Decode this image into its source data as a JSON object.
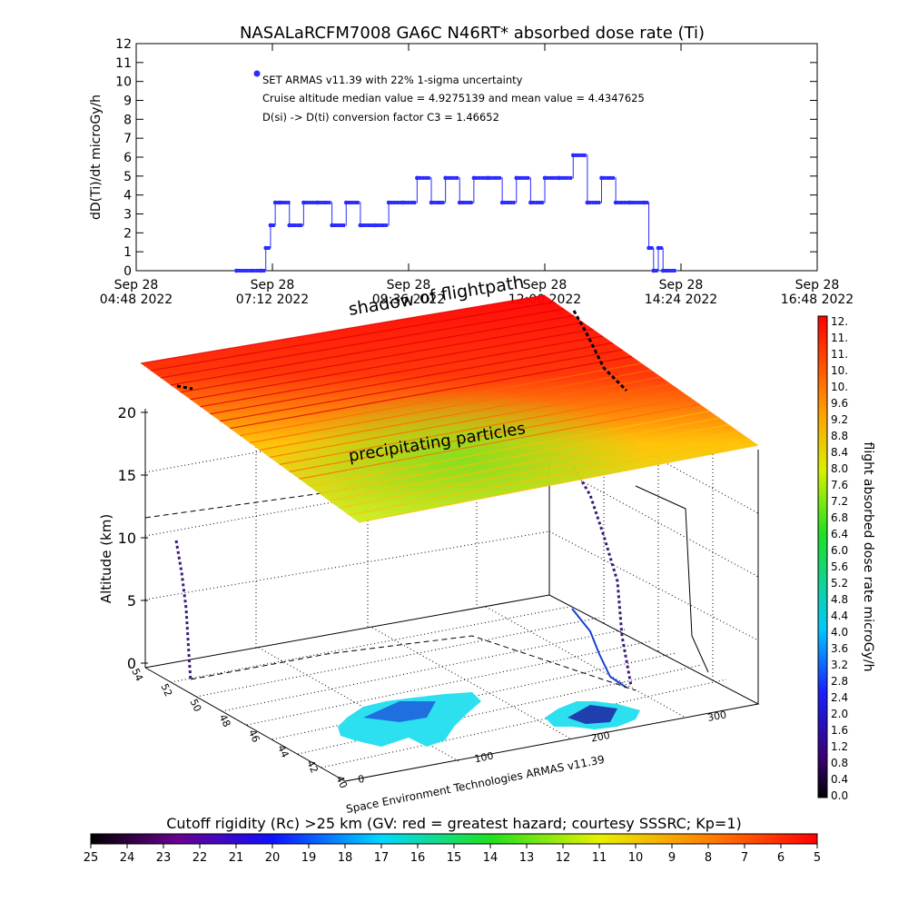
{
  "title": "NASALaRCFM7008  GA6C N46RT* absorbed dose rate (Ti)",
  "top_chart": {
    "ylabel": "dD(Ti)/dt microGy/h",
    "legend_lines": [
      "SET ARMAS v11.39 with 22% 1-sigma uncertainty",
      "Cruise altitude median value = 4.9275139 and mean value = 4.4347625",
      "D(si) -> D(ti) conversion factor C3 = 1.46652"
    ],
    "series_color": "#2b2bff"
  },
  "bottom_3d": {
    "zlabel": "Altitude (km)",
    "z_ticks": [
      "0",
      "5",
      "10",
      "15",
      "20"
    ],
    "lat_ticks": [
      "54",
      "52",
      "50",
      "48",
      "46",
      "44",
      "42",
      "40"
    ],
    "lon_ticks": [
      "0",
      "100",
      "200",
      "300"
    ],
    "label_shadow": "shadow of flightpath",
    "label_particles": "precipitating particles",
    "credit": "Space Environment Technologies ARMAS v11.39"
  },
  "right_colorbar": {
    "label": "flight absorbed dose rate microGy/h",
    "ticks": [
      "0.0",
      "0.4",
      "0.8",
      "1.2",
      "1.6",
      "2.0",
      "2.4",
      "2.8",
      "3.2",
      "3.6",
      "4.0",
      "4.4",
      "4.8",
      "5.2",
      "5.6",
      "6.0",
      "6.4",
      "6.8",
      "7.2",
      "7.6",
      "8.0",
      "8.4",
      "8.8",
      "9.2",
      "9.6",
      "10.",
      "10.",
      "11.",
      "11.",
      "12."
    ]
  },
  "bottom_colorbar": {
    "label": "Cutoff rigidity (Rc) >25 km (GV: red = greatest hazard; courtesy SSSRC; Kp=1)",
    "ticks": [
      "25",
      "24",
      "23",
      "22",
      "21",
      "20",
      "19",
      "18",
      "17",
      "16",
      "15",
      "14",
      "13",
      "12",
      "11",
      "10",
      "9",
      "8",
      "7",
      "6",
      "5"
    ]
  },
  "chart_data": {
    "type": "line",
    "title": "NASALaRCFM7008  GA6C N46RT* absorbed dose rate (Ti)",
    "xlabel": "",
    "ylabel": "dD(Ti)/dt microGy/h",
    "xlim": [
      "2022-09-28 04:48",
      "2022-09-28 16:48"
    ],
    "ylim": [
      0,
      12
    ],
    "x_tick_labels": [
      {
        "line1": "Sep 28",
        "line2": "04:48 2022"
      },
      {
        "line1": "Sep 28",
        "line2": "07:12 2022"
      },
      {
        "line1": "Sep 28",
        "line2": "09:36 2022"
      },
      {
        "line1": "Sep 28",
        "line2": "12:00 2022"
      },
      {
        "line1": "Sep 28",
        "line2": "14:24 2022"
      },
      {
        "line1": "Sep 28",
        "line2": "16:48 2022"
      }
    ],
    "y_tick_labels": [
      "0",
      "1",
      "2",
      "3",
      "4",
      "5",
      "6",
      "7",
      "8",
      "9",
      "10",
      "11",
      "12"
    ],
    "series": [
      {
        "name": "SET ARMAS v11.39 with 22% 1-sigma uncertainty",
        "x": [
          "06:34",
          "07:00",
          "07:05",
          "07:10",
          "07:15",
          "07:20",
          "07:30",
          "07:45",
          "08:00",
          "08:15",
          "08:30",
          "08:45",
          "09:00",
          "09:15",
          "09:30",
          "09:45",
          "10:00",
          "10:15",
          "10:30",
          "10:45",
          "11:00",
          "11:15",
          "11:30",
          "11:45",
          "12:00",
          "12:15",
          "12:30",
          "12:45",
          "13:00",
          "13:15",
          "13:30",
          "13:45",
          "13:50",
          "13:55",
          "14:00",
          "14:05",
          "14:20"
        ],
        "y": [
          0,
          0,
          1.2,
          2.4,
          3.6,
          3.6,
          2.4,
          3.6,
          3.6,
          2.4,
          3.6,
          2.4,
          2.4,
          3.6,
          3.6,
          4.9,
          3.6,
          4.9,
          3.6,
          4.9,
          4.9,
          3.6,
          4.9,
          3.6,
          4.9,
          4.9,
          6.1,
          3.6,
          4.9,
          3.6,
          3.6,
          3.6,
          1.2,
          0,
          1.2,
          0,
          0
        ]
      }
    ],
    "cruise_median": 4.9275139,
    "cruise_mean": 4.4347625,
    "conversion_factor_C3": 1.46652,
    "uncertainty_percent": 22,
    "grid": false,
    "legend_position": "top-left"
  }
}
